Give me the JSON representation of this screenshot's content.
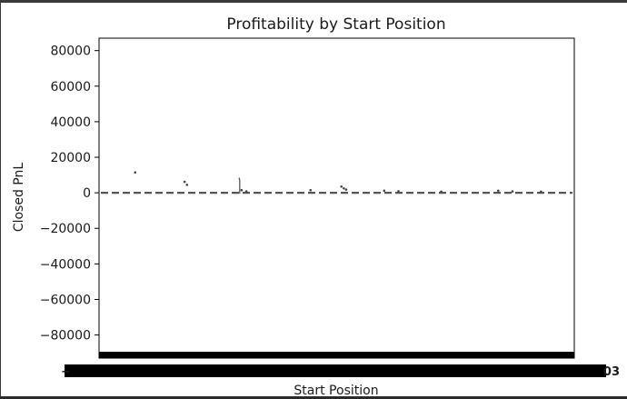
{
  "chart_data": {
    "type": "box",
    "title": "Profitability by Start Position",
    "xlabel": "Start Position",
    "ylabel": "Closed PnL",
    "ylim": [
      -93000,
      87000
    ],
    "yticks": [
      80000,
      60000,
      40000,
      20000,
      0,
      -20000,
      -40000,
      -60000,
      -80000
    ],
    "ytick_labels": [
      "80000",
      "60000",
      "40000",
      "20000",
      "0",
      "−20000",
      "−40000",
      "−60000",
      "−80000"
    ],
    "x_tick_labels_overlapping": true,
    "x_tick_label_fragments": {
      "left": "−",
      "right": "03"
    },
    "median_line": {
      "value": 0,
      "style": "dashed",
      "color": "#555555"
    },
    "grid": false,
    "legend": "none",
    "outliers": [
      {
        "x_fraction": 0.076,
        "y": 11500
      },
      {
        "x_fraction": 0.18,
        "y": 6200
      },
      {
        "x_fraction": 0.185,
        "y": 4500
      },
      {
        "x_fraction": 0.295,
        "y": 8000,
        "kind": "whisker"
      },
      {
        "x_fraction": 0.296,
        "y": 7000,
        "kind": "whisker"
      },
      {
        "x_fraction": 0.296,
        "y": 6000,
        "kind": "whisker"
      },
      {
        "x_fraction": 0.296,
        "y": 5000,
        "kind": "whisker"
      },
      {
        "x_fraction": 0.296,
        "y": 4000,
        "kind": "whisker"
      },
      {
        "x_fraction": 0.296,
        "y": 3000,
        "kind": "whisker"
      },
      {
        "x_fraction": 0.296,
        "y": 2000,
        "kind": "whisker"
      },
      {
        "x_fraction": 0.296,
        "y": 1000,
        "kind": "whisker"
      },
      {
        "x_fraction": 0.296,
        "y": 0,
        "kind": "whisker"
      },
      {
        "x_fraction": 0.3,
        "y": 1500
      },
      {
        "x_fraction": 0.31,
        "y": 800
      },
      {
        "x_fraction": 0.445,
        "y": 1500
      },
      {
        "x_fraction": 0.51,
        "y": 3500
      },
      {
        "x_fraction": 0.515,
        "y": 2500
      },
      {
        "x_fraction": 0.52,
        "y": 1800
      },
      {
        "x_fraction": 0.6,
        "y": 1200
      },
      {
        "x_fraction": 0.63,
        "y": 900
      },
      {
        "x_fraction": 0.72,
        "y": 700
      },
      {
        "x_fraction": 0.84,
        "y": 1200
      },
      {
        "x_fraction": 0.87,
        "y": 800
      },
      {
        "x_fraction": 0.93,
        "y": 700
      }
    ]
  },
  "colors": {
    "axis": "#000000",
    "median": "#555555",
    "outlier": "#444444",
    "tick_label_blob": "#000000"
  }
}
